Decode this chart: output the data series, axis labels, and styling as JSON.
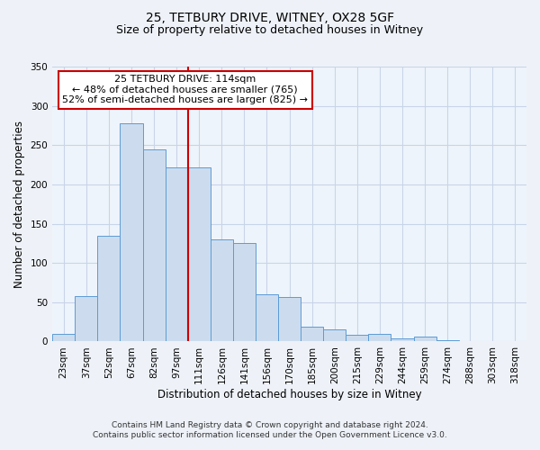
{
  "title": "25, TETBURY DRIVE, WITNEY, OX28 5GF",
  "subtitle": "Size of property relative to detached houses in Witney",
  "xlabel": "Distribution of detached houses by size in Witney",
  "ylabel": "Number of detached properties",
  "annotation_line1": "25 TETBURY DRIVE: 114sqm",
  "annotation_line2": "← 48% of detached houses are smaller (765)",
  "annotation_line3": "52% of semi-detached houses are larger (825) →",
  "footer_line1": "Contains HM Land Registry data © Crown copyright and database right 2024.",
  "footer_line2": "Contains public sector information licensed under the Open Government Licence v3.0.",
  "bar_labels": [
    "23sqm",
    "37sqm",
    "52sqm",
    "67sqm",
    "82sqm",
    "97sqm",
    "111sqm",
    "126sqm",
    "141sqm",
    "156sqm",
    "170sqm",
    "185sqm",
    "200sqm",
    "215sqm",
    "229sqm",
    "244sqm",
    "259sqm",
    "274sqm",
    "288sqm",
    "303sqm",
    "318sqm"
  ],
  "bar_values": [
    10,
    58,
    135,
    278,
    245,
    222,
    222,
    130,
    125,
    60,
    57,
    19,
    15,
    9,
    10,
    4,
    6,
    2,
    0,
    0,
    1
  ],
  "bar_color": "#ccdcee",
  "bar_edgecolor": "#5b9bd5",
  "vline_color": "#cc0000",
  "annotation_box_edgecolor": "#cc0000",
  "ylim": [
    0,
    350
  ],
  "yticks": [
    0,
    50,
    100,
    150,
    200,
    250,
    300,
    350
  ],
  "grid_color": "#c8d4e8",
  "background_color": "#eef2f8",
  "plot_bg_color": "#eef4fb",
  "title_fontsize": 10,
  "subtitle_fontsize": 9,
  "axis_label_fontsize": 8.5,
  "tick_fontsize": 7.5,
  "footer_fontsize": 6.5
}
